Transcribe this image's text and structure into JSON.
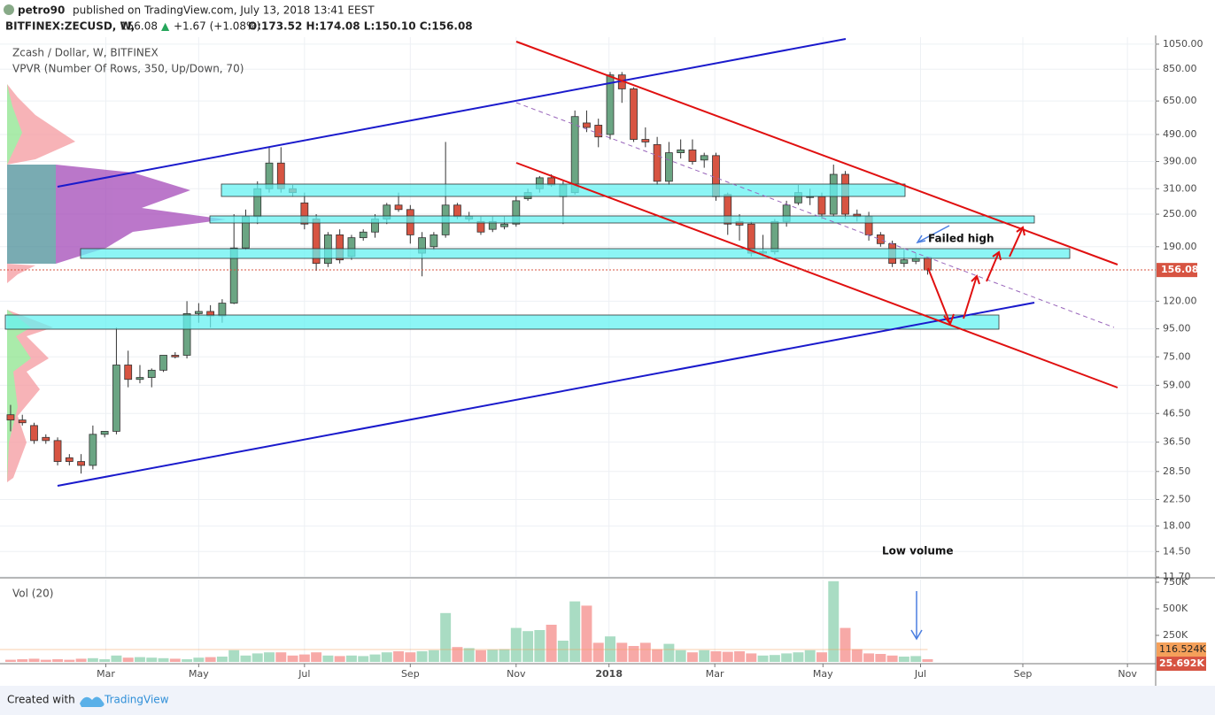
{
  "header": {
    "author": "petro90",
    "published": "published on TradingView.com, July 13, 2018 13:41 EEST",
    "symbol": "BITFINEX:ZECUSD, W,",
    "price": "156.08",
    "change": "+1.67 (+1.08%)",
    "quote": "O:173.52 H:174.08 L:150.10 C:156.08"
  },
  "footer": {
    "created": "Created with",
    "brand": "TradingView"
  },
  "chart_data": {
    "type": "candlestick",
    "title": "Zcash / Dollar, W, BITFINEX",
    "subtitle": "VPVR (Number Of Rows, 350, Up/Down, 70)",
    "categories": [
      null,
      null,
      null,
      null,
      null,
      null,
      null,
      null,
      null,
      null,
      null,
      null,
      null,
      null,
      null,
      null,
      null,
      null,
      null,
      null,
      null,
      null,
      null,
      null,
      null,
      null,
      null,
      null,
      null,
      null,
      null,
      null,
      null,
      null,
      null,
      null,
      null,
      null,
      null,
      null,
      null,
      null,
      null,
      null,
      null,
      null,
      null,
      null,
      null,
      null,
      null,
      null,
      null,
      null,
      null,
      null,
      null,
      null,
      null,
      null,
      null,
      null,
      null,
      null,
      null,
      null,
      null,
      null,
      null,
      null,
      null,
      null,
      null,
      null,
      null,
      null,
      null,
      null,
      null
    ],
    "open": [
      46,
      44,
      42,
      38,
      37,
      32,
      31,
      30,
      39,
      40,
      70,
      62,
      63,
      67,
      76,
      76,
      108,
      110,
      106,
      118,
      188,
      245,
      310,
      385,
      310,
      275,
      240,
      165,
      210,
      175,
      205,
      215,
      240,
      270,
      260,
      180,
      190,
      210,
      270,
      240,
      235,
      220,
      225,
      230,
      285,
      310,
      340,
      290,
      300,
      540,
      530,
      490,
      810,
      720,
      470,
      450,
      330,
      420,
      430,
      395,
      410,
      295,
      235,
      230,
      180,
      182,
      235,
      275,
      290,
      290,
      250,
      350,
      250,
      245,
      210,
      195,
      165,
      168,
      173.52
    ],
    "high": [
      50,
      46,
      43,
      39,
      38,
      33,
      33,
      42,
      40,
      96,
      79,
      70,
      68,
      76,
      78,
      120,
      118,
      116,
      122,
      250,
      260,
      330,
      440,
      440,
      320,
      300,
      250,
      215,
      220,
      210,
      220,
      250,
      275,
      300,
      270,
      215,
      215,
      460,
      275,
      255,
      245,
      245,
      245,
      290,
      310,
      345,
      350,
      330,
      600,
      600,
      560,
      830,
      830,
      730,
      520,
      480,
      460,
      470,
      470,
      420,
      420,
      300,
      250,
      235,
      210,
      240,
      280,
      320,
      310,
      300,
      380,
      360,
      260,
      255,
      215,
      200,
      185,
      180,
      174.08
    ],
    "low": [
      40,
      42,
      36,
      36,
      30,
      30,
      28,
      29,
      38,
      39,
      58,
      60,
      58,
      66,
      74,
      74,
      100,
      96,
      100,
      117,
      185,
      230,
      300,
      300,
      290,
      220,
      155,
      160,
      165,
      170,
      200,
      205,
      230,
      255,
      195,
      148,
      185,
      205,
      240,
      235,
      210,
      215,
      220,
      225,
      280,
      300,
      315,
      230,
      295,
      500,
      440,
      470,
      640,
      460,
      440,
      320,
      320,
      400,
      380,
      370,
      280,
      210,
      200,
      175,
      175,
      178,
      225,
      270,
      270,
      240,
      245,
      240,
      235,
      200,
      190,
      160,
      160,
      164,
      150.1
    ],
    "close": [
      44,
      43,
      37,
      37,
      31,
      31,
      30,
      39,
      40,
      70,
      62,
      63,
      67,
      76,
      75,
      108,
      110,
      106,
      118,
      188,
      245,
      310,
      385,
      310,
      300,
      230,
      165,
      210,
      170,
      205,
      215,
      240,
      270,
      260,
      210,
      205,
      210,
      270,
      245,
      245,
      215,
      235,
      230,
      280,
      300,
      340,
      320,
      320,
      570,
      520,
      480,
      810,
      720,
      470,
      460,
      330,
      420,
      430,
      390,
      410,
      290,
      230,
      228,
      180,
      182,
      235,
      270,
      300,
      290,
      250,
      350,
      250,
      245,
      210,
      195,
      165,
      170,
      172,
      156.08
    ],
    "up_color": "#6ba583",
    "down_color": "#d75442",
    "log_scale": true,
    "grid": true,
    "ylim": [
      11.7,
      1114
    ],
    "yticks": [
      {
        "value": 1050,
        "label": "1050.00"
      },
      {
        "value": 850,
        "label": "850.00"
      },
      {
        "value": 650,
        "label": "650.00"
      },
      {
        "value": 490,
        "label": "490.00"
      },
      {
        "value": 390,
        "label": "390.00"
      },
      {
        "value": 310,
        "label": "310.00"
      },
      {
        "value": 250,
        "label": "250.00"
      },
      {
        "value": 190,
        "label": "190.00"
      },
      {
        "value": 120,
        "label": "120.00"
      },
      {
        "value": 95,
        "label": "95.00"
      },
      {
        "value": 75,
        "label": "75.00"
      },
      {
        "value": 59,
        "label": "59.00"
      },
      {
        "value": 46.5,
        "label": "46.50"
      },
      {
        "value": 36.5,
        "label": "36.50"
      },
      {
        "value": 28.5,
        "label": "28.50"
      },
      {
        "value": 22.5,
        "label": "22.50"
      },
      {
        "value": 18,
        "label": "18.00"
      },
      {
        "value": 14.5,
        "label": "14.50"
      },
      {
        "value": 11.7,
        "label": "11.70"
      }
    ],
    "xlim": [
      -0.9,
      97.4
    ],
    "xticks": [
      {
        "value": 8.1,
        "label": "Mar"
      },
      {
        "value": 16,
        "label": "May"
      },
      {
        "value": 25,
        "label": "Jul"
      },
      {
        "value": 34,
        "label": "Sep"
      },
      {
        "value": 43,
        "label": "Nov"
      },
      {
        "value": 50.9,
        "label": "2018"
      },
      {
        "value": 59.9,
        "label": "Mar"
      },
      {
        "value": 69.1,
        "label": "May"
      },
      {
        "value": 77.4,
        "label": "Jul"
      },
      {
        "value": 86.1,
        "label": "Sep"
      },
      {
        "value": 95,
        "label": "Nov"
      }
    ],
    "annotations": [
      "Failed high",
      "Low volume"
    ],
    "volume": {
      "title": "Vol (20)",
      "up_color": "#a9dcc3",
      "down_color": "#f7a9a7",
      "values": [
        20000,
        25000,
        30000,
        20000,
        25000,
        20000,
        30000,
        35000,
        25000,
        60000,
        40000,
        45000,
        40000,
        35000,
        30000,
        25000,
        40000,
        45000,
        50000,
        110000,
        60000,
        80000,
        90000,
        90000,
        60000,
        70000,
        90000,
        60000,
        55000,
        60000,
        55000,
        70000,
        90000,
        100000,
        90000,
        100000,
        110000,
        460000,
        140000,
        130000,
        110000,
        115000,
        120000,
        320000,
        290000,
        300000,
        350000,
        200000,
        570000,
        530000,
        180000,
        240000,
        180000,
        150000,
        180000,
        120000,
        170000,
        110000,
        90000,
        110000,
        100000,
        95000,
        100000,
        80000,
        60000,
        65000,
        80000,
        90000,
        110000,
        90000,
        760000,
        320000,
        120000,
        80000,
        75000,
        60000,
        50000,
        55000,
        25692
      ],
      "last_label": "25.692K",
      "ma": {
        "value": 116524,
        "label": "116.524K"
      },
      "ylim": [
        0,
        775000
      ],
      "yticks": [
        {
          "value": 750000,
          "label": "750K"
        },
        {
          "value": 500000,
          "label": "500K"
        },
        {
          "value": 250000,
          "label": "250K"
        }
      ]
    }
  }
}
